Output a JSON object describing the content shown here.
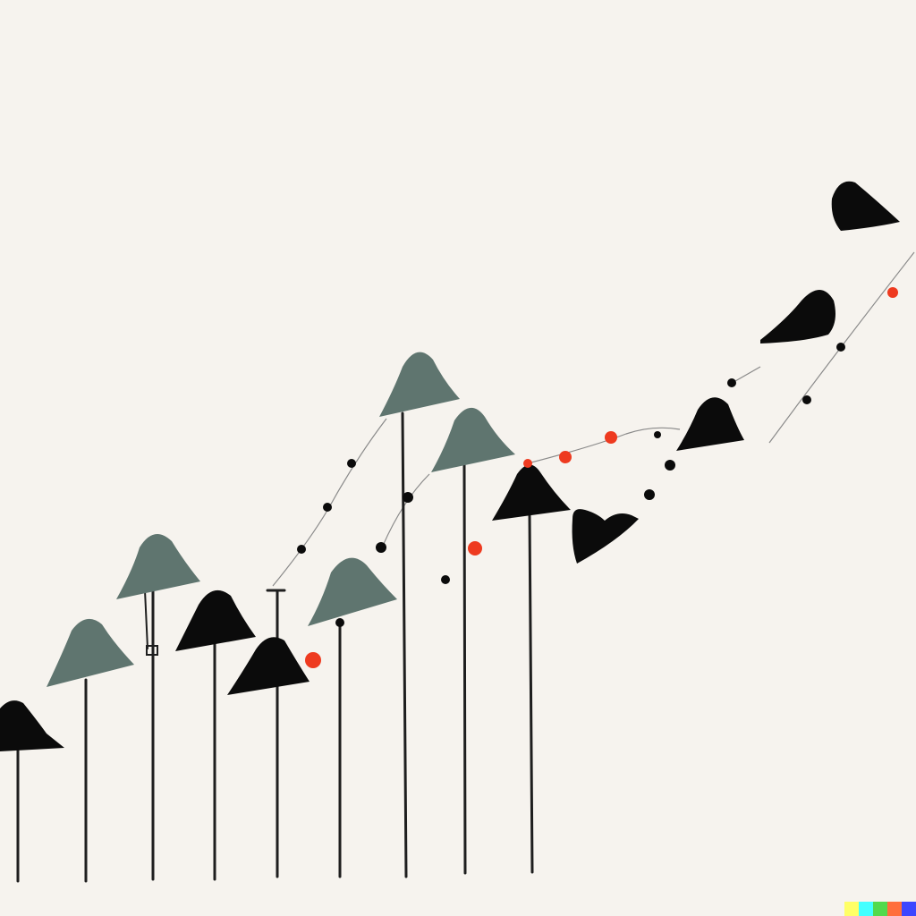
{
  "artwork": {
    "background": "#f6f3ee",
    "colors": {
      "shade_gray": "#5f756f",
      "shade_black": "#0b0b0b",
      "pole": "#1e1e1e",
      "string": "#8a8a8a",
      "accent_red": "#ee3a1f"
    },
    "lamps": [
      {
        "shade": "black",
        "pole": true
      },
      {
        "shade": "gray",
        "pole": true
      },
      {
        "shade": "gray",
        "pole": true
      },
      {
        "shade": "black",
        "pole": true
      },
      {
        "shade": "black",
        "pole": true
      },
      {
        "shade": "gray",
        "pole": true
      },
      {
        "shade": "gray",
        "pole": true
      },
      {
        "shade": "gray",
        "pole": true
      },
      {
        "shade": "black",
        "pole": true
      },
      {
        "shade": "black",
        "pole": false
      },
      {
        "shade": "black",
        "pole": false
      },
      {
        "shade": "black",
        "pole": false
      },
      {
        "shade": "black",
        "pole": false
      }
    ],
    "signature_colors": [
      "#ffff66",
      "#42ffff",
      "#51da4c",
      "#ff6e3c",
      "#3c46ff"
    ]
  }
}
